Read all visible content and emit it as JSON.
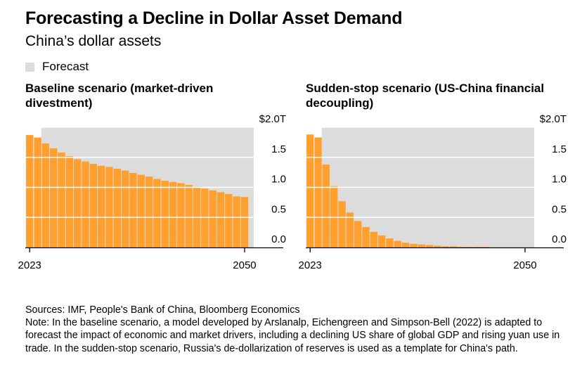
{
  "title": "Forecasting a Decline in Dollar Asset Demand",
  "subtitle": "China’s dollar assets",
  "legend": {
    "label": "Forecast",
    "color": "#dcdcdc"
  },
  "colors": {
    "bar": "#ffa02e",
    "forecast_band": "#dcdcdc",
    "grid": "#ffffff",
    "axis": "#000000"
  },
  "chart_data": [
    {
      "type": "bar",
      "title": "Baseline scenario (market-driven divestment)",
      "x": [
        2023,
        2024,
        2025,
        2026,
        2027,
        2028,
        2029,
        2030,
        2031,
        2032,
        2033,
        2034,
        2035,
        2036,
        2037,
        2038,
        2039,
        2040,
        2041,
        2042,
        2043,
        2044,
        2045,
        2046,
        2047,
        2048,
        2049,
        2050
      ],
      "values": [
        1.87,
        1.83,
        1.73,
        1.65,
        1.58,
        1.52,
        1.47,
        1.43,
        1.39,
        1.36,
        1.34,
        1.31,
        1.28,
        1.24,
        1.21,
        1.18,
        1.14,
        1.11,
        1.09,
        1.07,
        1.04,
        1.01,
        0.98,
        0.95,
        0.92,
        0.89,
        0.85,
        0.84
      ],
      "forecast_start": 2025,
      "ylim": [
        0,
        2.0
      ],
      "yticks": [
        0,
        0.5,
        1.0,
        1.5,
        2.0
      ],
      "ytick_labels": [
        "0.0",
        "0.5",
        "1.0",
        "1.5",
        "$2.0T"
      ],
      "xtick_labels": [
        "2023",
        "2050"
      ]
    },
    {
      "type": "bar",
      "title": "Sudden-stop scenario (US-China financial decoupling)",
      "x": [
        2023,
        2024,
        2025,
        2026,
        2027,
        2028,
        2029,
        2030,
        2031,
        2032,
        2033,
        2034,
        2035,
        2036,
        2037,
        2038,
        2039,
        2040,
        2041,
        2042,
        2043,
        2044,
        2045,
        2046,
        2047,
        2048,
        2049,
        2050
      ],
      "values": [
        1.88,
        1.83,
        1.38,
        1.02,
        0.77,
        0.58,
        0.44,
        0.34,
        0.26,
        0.2,
        0.15,
        0.11,
        0.08,
        0.06,
        0.05,
        0.04,
        0.03,
        0.02,
        0.02,
        0.01,
        0.01,
        0.01,
        0.01,
        0.0,
        0.0,
        0.0,
        0.0,
        0.0
      ],
      "forecast_start": 2025,
      "ylim": [
        0,
        2.0
      ],
      "yticks": [
        0,
        0.5,
        1.0,
        1.5,
        2.0
      ],
      "ytick_labels": [
        "0.0",
        "0.5",
        "1.0",
        "1.5",
        "$2.0T"
      ],
      "xtick_labels": [
        "2023",
        "2050"
      ]
    }
  ],
  "footer": {
    "sources": "Sources: IMF, People's Bank of China, Bloomberg Economics",
    "note": "Note: In the baseline scenario, a model developed by Arslanalp, Eichengreen and Simpson-Bell (2022) is adapted to forecast the impact of economic and market drivers, including a declining US share of global GDP and rising yuan use in trade. In the sudden-stop scenario, Russia's de-dollarization of reserves is used as a template for China's path."
  }
}
